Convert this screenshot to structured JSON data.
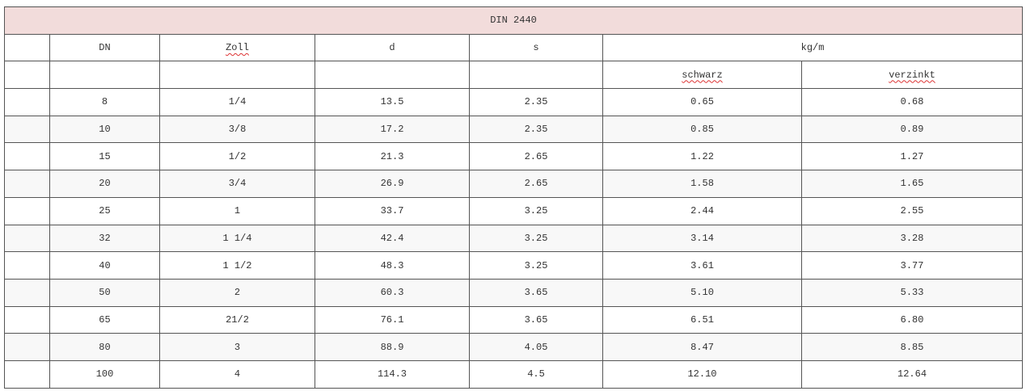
{
  "title": "DIN 2440",
  "header": {
    "columns": [
      "DN",
      "Zoll",
      "d",
      "s",
      "kg/m"
    ],
    "subcolumns": [
      "schwarz",
      "verzinkt"
    ]
  },
  "rows": [
    [
      "8",
      "1/4",
      "13.5",
      "2.35",
      "0.65",
      "0.68"
    ],
    [
      "10",
      "3/8",
      "17.2",
      "2.35",
      "0.85",
      "0.89"
    ],
    [
      "15",
      "1/2",
      "21.3",
      "2.65",
      "1.22",
      "1.27"
    ],
    [
      "20",
      "3/4",
      "26.9",
      "2.65",
      "1.58",
      "1.65"
    ],
    [
      "25",
      "1",
      "33.7",
      "3.25",
      "2.44",
      "2.55"
    ],
    [
      "32",
      "1 1/4",
      "42.4",
      "3.25",
      "3.14",
      "3.28"
    ],
    [
      "40",
      "1 1/2",
      "48.3",
      "3.25",
      "3.61",
      "3.77"
    ],
    [
      "50",
      "2",
      "60.3",
      "3.65",
      "5.10",
      "5.33"
    ],
    [
      "65",
      "21/2",
      "76.1",
      "3.65",
      "6.51",
      "6.80"
    ],
    [
      "80",
      "3",
      "88.9",
      "4.05",
      "8.47",
      "8.85"
    ],
    [
      "100",
      "4",
      "114.3",
      "4.5",
      "12.10",
      "12.64"
    ]
  ]
}
